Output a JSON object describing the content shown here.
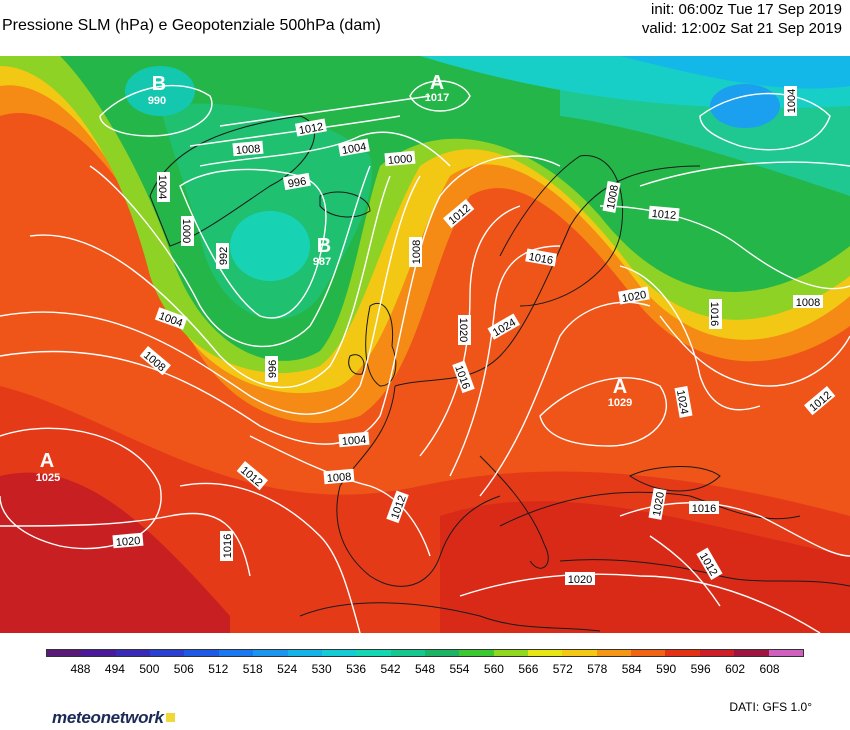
{
  "header": {
    "title": "Pressione SLM (hPa) e Geopotenziale 500hPa (dam)",
    "init": "init: 06:00z Tue 17 Sep 2019",
    "valid": "valid: 12:00z Sat 21 Sep 2019"
  },
  "colorbar": {
    "labels": [
      "488",
      "494",
      "500",
      "506",
      "512",
      "518",
      "524",
      "530",
      "536",
      "542",
      "548",
      "554",
      "560",
      "566",
      "572",
      "578",
      "584",
      "590",
      "596",
      "602",
      "608"
    ],
    "colors": [
      "#5a1a7a",
      "#4a1a9a",
      "#3a2ab8",
      "#2a40d0",
      "#1e5ae6",
      "#1a78f0",
      "#1a96f0",
      "#14b4ea",
      "#14ccd8",
      "#14d8b4",
      "#14c890",
      "#1ab464",
      "#3cc832",
      "#90d81e",
      "#e6e614",
      "#f5c814",
      "#f59614",
      "#f06414",
      "#e63214",
      "#d01e28",
      "#a01440",
      "#d060c0"
    ]
  },
  "pressure_centers": [
    {
      "type": "B",
      "value": "990"
    },
    {
      "type": "A",
      "value": "1017"
    },
    {
      "type": "B",
      "value": "987"
    },
    {
      "type": "A",
      "value": "1029"
    },
    {
      "type": "A",
      "value": "1025"
    }
  ],
  "isobar_labels": [
    "1012",
    "1004",
    "1000",
    "996",
    "1004",
    "1008",
    "1000",
    "992",
    "996",
    "1012",
    "1008",
    "1016",
    "1020",
    "1024",
    "1016",
    "1004",
    "1008",
    "1012",
    "1016",
    "1020",
    "1012",
    "1016",
    "1012",
    "1020",
    "1016",
    "1012",
    "1024",
    "1008",
    "1008",
    "1004",
    "1004",
    "1020",
    "1012",
    "1008",
    "1004"
  ],
  "footer": {
    "brand": "meteonetwork",
    "source": "DATI: GFS  1.0°"
  }
}
